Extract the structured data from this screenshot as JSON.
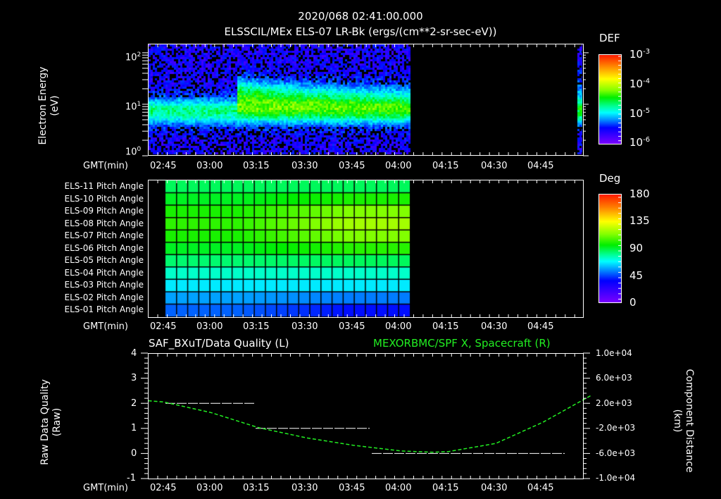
{
  "header": {
    "timestamp": "2020/068 02:41:00.000",
    "title": "ELSSCIL/MEx ELS-07 LR-Bk  (ergs/(cm**2-sr-sec-eV))"
  },
  "time_axis": {
    "label": "GMT(min)",
    "ticks": [
      "02:45",
      "03:00",
      "03:15",
      "03:30",
      "03:45",
      "04:00",
      "04:15",
      "04:30",
      "04:45"
    ]
  },
  "panel1": {
    "ylabel_line1": "Electron Energy",
    "ylabel_line2": "(eV)",
    "yticks": [
      {
        "base": "10",
        "exp": "2"
      },
      {
        "base": "10",
        "exp": "1"
      },
      {
        "base": "10",
        "exp": "0"
      }
    ],
    "colorbar": {
      "title": "DEF",
      "ticks": [
        {
          "base": "10",
          "exp": "-3"
        },
        {
          "base": "10",
          "exp": "-4"
        },
        {
          "base": "10",
          "exp": "-5"
        },
        {
          "base": "10",
          "exp": "-6"
        }
      ]
    }
  },
  "panel2": {
    "row_labels": [
      "ELS-11 Pitch Angle",
      "ELS-10 Pitch Angle",
      "ELS-09 Pitch Angle",
      "ELS-08 Pitch Angle",
      "ELS-07 Pitch Angle",
      "ELS-06 Pitch Angle",
      "ELS-05 Pitch Angle",
      "ELS-04 Pitch Angle",
      "ELS-03 Pitch Angle",
      "ELS-02 Pitch Angle",
      "ELS-01 Pitch Angle"
    ],
    "colorbar": {
      "title": "Deg",
      "ticks": [
        "180",
        "135",
        "90",
        "45",
        "0"
      ]
    }
  },
  "panel3": {
    "left_title": "SAF_BXuT/Data Quality (L)",
    "right_title": "MEXORBMC/SPF X, Spacecraft (R)",
    "right_title_color": "#22ee22",
    "ylabel_left_line1": "Raw Data Quality",
    "ylabel_left_line2": "(Raw)",
    "ylabel_right_line1": "Component Distance",
    "ylabel_right_line2": "(km)",
    "yticks_left": [
      "4",
      "3",
      "2",
      "1",
      "0",
      "-1"
    ],
    "yticks_right": [
      "1.0e+04",
      "6.0e+03",
      "2.0e+03",
      "-2.0e+03",
      "-6.0e+03",
      "-1.0e+04"
    ]
  },
  "chart_data": [
    {
      "type": "heatmap",
      "title": "ELSSCIL/MEx ELS-07 LR-Bk (ergs/(cm**2-sr-sec-eV))",
      "xlabel": "GMT(min)",
      "ylabel": "Electron Energy (eV)",
      "yscale": "log",
      "ylim": [
        1,
        150
      ],
      "x_ticks": [
        "02:45",
        "03:00",
        "03:15",
        "03:30",
        "03:45",
        "04:00",
        "04:15",
        "04:30",
        "04:45"
      ],
      "colorbar": {
        "label": "DEF",
        "scale": "log",
        "range": [
          1e-06,
          0.001
        ]
      },
      "description": "Broad band ~5-20 eV at ~1e-5 DEF from 02:40 to 03:08; sharp onset at ~03:08 with enhanced flux (~1e-4) 10-40 eV, decaying toward 04:02; data gap 04:02-04:58; short data strip at ~04:58",
      "data_coverage": [
        [
          "02:40",
          "04:02"
        ],
        [
          "04:58",
          "05:00"
        ]
      ]
    },
    {
      "type": "heatmap",
      "title": "Pitch Angle",
      "rows": [
        "ELS-01",
        "ELS-02",
        "ELS-03",
        "ELS-04",
        "ELS-05",
        "ELS-06",
        "ELS-07",
        "ELS-08",
        "ELS-09",
        "ELS-10",
        "ELS-11"
      ],
      "colorbar": {
        "label": "Deg",
        "range": [
          0,
          180
        ],
        "ticks": [
          0,
          45,
          90,
          135,
          180
        ]
      },
      "approx_values_deg": {
        "ELS-01": [
          48,
          35
        ],
        "ELS-02": [
          58,
          52
        ],
        "ELS-03": [
          70,
          70
        ],
        "ELS-04": [
          82,
          82
        ],
        "ELS-05": [
          95,
          97
        ],
        "ELS-06": [
          103,
          112
        ],
        "ELS-07": [
          110,
          125
        ],
        "ELS-08": [
          113,
          130
        ],
        "ELS-09": [
          110,
          125
        ],
        "ELS-10": [
          103,
          110
        ],
        "ELS-11": [
          97,
          97
        ]
      },
      "data_coverage": [
        [
          "02:45",
          "04:02"
        ]
      ]
    },
    {
      "type": "line",
      "title": "SAF_BXuT/Data Quality (L) ; MEXORBMC/SPF X, Spacecraft (R)",
      "xlabel": "GMT(min)",
      "ylabel_left": "Raw Data Quality (Raw)",
      "ylabel_right": "Component Distance (km)",
      "ylim_left": [
        -1,
        4
      ],
      "ylim_right": [
        -10000,
        10000
      ],
      "series": [
        {
          "name": "Data Quality",
          "axis": "left",
          "color": "#ffffff",
          "x": [
            "02:45",
            "03:15",
            "03:15",
            "03:52",
            "03:52",
            "04:55"
          ],
          "values": [
            2,
            2,
            1,
            1,
            0,
            0
          ]
        },
        {
          "name": "SPF X",
          "axis": "right",
          "color": "#22ee22",
          "x": [
            "02:40",
            "02:45",
            "03:00",
            "03:15",
            "03:30",
            "03:45",
            "04:00",
            "04:10",
            "04:15",
            "04:30",
            "04:45",
            "05:00"
          ],
          "values": [
            2400,
            2200,
            500,
            -1900,
            -3500,
            -4700,
            -5600,
            -5800,
            -5700,
            -4400,
            -1000,
            3200
          ]
        }
      ]
    }
  ]
}
